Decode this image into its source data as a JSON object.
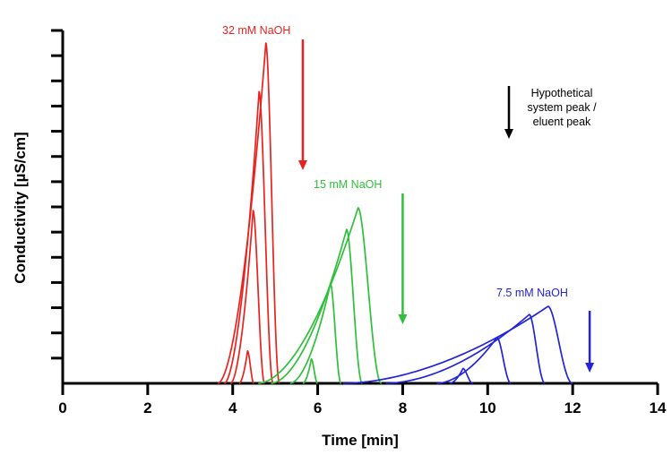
{
  "chart_data": {
    "type": "line",
    "title": "",
    "xlabel": "Time [min]",
    "ylabel": "Conductivity [µS/cm]",
    "xlim": [
      0,
      14
    ],
    "ylim": [
      0,
      13
    ],
    "x_ticks": [
      "0",
      "2",
      "4",
      "6",
      "8",
      "10",
      "12",
      "14"
    ],
    "y_tick_count": 14,
    "y_tick_labels_shown": false,
    "grid": false,
    "legend": "none",
    "series": [
      {
        "label": "32 mM NaOH",
        "color": "#e8231f",
        "arrow_x": 5.65,
        "peaks": [
          {
            "start": 4.15,
            "apex": 4.35,
            "end": 4.5,
            "height": 1.2
          },
          {
            "start": 3.95,
            "apex": 4.48,
            "end": 4.75,
            "height": 6.4
          },
          {
            "start": 3.8,
            "apex": 4.62,
            "end": 4.95,
            "height": 10.8
          },
          {
            "start": 3.65,
            "apex": 4.78,
            "end": 5.1,
            "height": 12.6
          }
        ]
      },
      {
        "label": "15 mM NaOH",
        "color": "#2fbf3a",
        "arrow_x": 8.0,
        "peaks": [
          {
            "start": 5.65,
            "apex": 5.85,
            "end": 6.0,
            "height": 0.9
          },
          {
            "start": 5.35,
            "apex": 6.3,
            "end": 6.55,
            "height": 3.7
          },
          {
            "start": 4.9,
            "apex": 6.68,
            "end": 7.05,
            "height": 5.7
          },
          {
            "start": 4.6,
            "apex": 6.95,
            "end": 7.5,
            "height": 6.5
          }
        ]
      },
      {
        "label": "7.5 mM NaOH",
        "color": "#2323d8",
        "arrow_x": 12.4,
        "peaks": [
          {
            "start": 9.1,
            "apex": 9.42,
            "end": 9.65,
            "height": 0.55
          },
          {
            "start": 8.8,
            "apex": 10.22,
            "end": 10.55,
            "height": 1.7
          },
          {
            "start": 7.6,
            "apex": 10.98,
            "end": 11.35,
            "height": 2.55
          },
          {
            "start": 6.6,
            "apex": 11.42,
            "end": 12.0,
            "height": 2.85
          }
        ]
      }
    ],
    "annotations": [
      {
        "text": [
          "Hypothetical",
          "system peak /",
          "eluent peak"
        ],
        "color": "#000000"
      }
    ]
  }
}
